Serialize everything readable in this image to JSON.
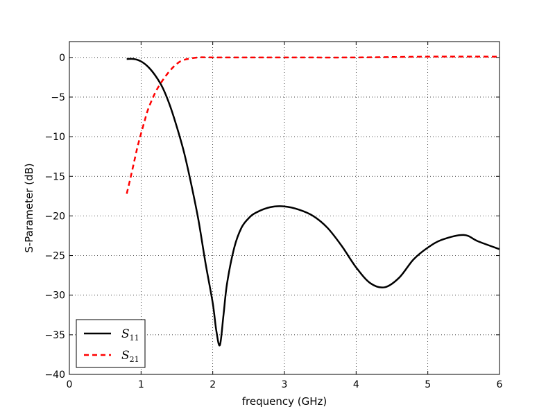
{
  "chart_data": {
    "type": "line",
    "title": "",
    "xlabel": "frequency (GHz)",
    "ylabel": "S-Parameter (dB)",
    "xlim": [
      0,
      6
    ],
    "ylim": [
      -40,
      2
    ],
    "xticks": [
      0,
      1,
      2,
      3,
      4,
      5,
      6
    ],
    "xtick_labels": [
      "0",
      "1",
      "2",
      "3",
      "4",
      "5",
      "6"
    ],
    "yticks": [
      0,
      -5,
      -10,
      -15,
      -20,
      -25,
      -30,
      -35,
      -40
    ],
    "ytick_labels": [
      "0",
      "−5",
      "−10",
      "−15",
      "−20",
      "−25",
      "−30",
      "−35",
      "−40"
    ],
    "grid": true,
    "legend_position": "lower-left",
    "series": [
      {
        "name": "S11",
        "legend_main": "S",
        "legend_sub": "11",
        "color": "#000000",
        "style": "solid",
        "x": [
          0.8,
          0.9,
          1.0,
          1.1,
          1.2,
          1.3,
          1.4,
          1.5,
          1.6,
          1.7,
          1.8,
          1.9,
          2.0,
          2.05,
          2.1,
          2.15,
          2.2,
          2.3,
          2.4,
          2.5,
          2.6,
          2.8,
          3.0,
          3.2,
          3.4,
          3.6,
          3.8,
          4.0,
          4.2,
          4.4,
          4.6,
          4.8,
          5.0,
          5.2,
          5.5,
          5.7,
          6.0
        ],
        "y": [
          -0.2,
          -0.2,
          -0.5,
          -1.2,
          -2.3,
          -3.8,
          -6.0,
          -8.8,
          -12.0,
          -16.0,
          -20.5,
          -26.0,
          -31.0,
          -34.5,
          -36.3,
          -32.5,
          -28.5,
          -24.0,
          -21.5,
          -20.3,
          -19.6,
          -18.9,
          -18.8,
          -19.2,
          -20.0,
          -21.5,
          -23.8,
          -26.5,
          -28.5,
          -29.0,
          -27.8,
          -25.5,
          -24.0,
          -23.0,
          -22.4,
          -23.2,
          -24.2
        ]
      },
      {
        "name": "S21",
        "legend_main": "S",
        "legend_sub": "21",
        "color": "#ff0000",
        "style": "dashed",
        "x": [
          0.8,
          0.85,
          0.9,
          0.95,
          1.0,
          1.05,
          1.1,
          1.2,
          1.3,
          1.4,
          1.5,
          1.6,
          1.8,
          2.0,
          2.5,
          3.0,
          4.0,
          5.0,
          6.0
        ],
        "y": [
          -17.2,
          -15.3,
          -13.3,
          -11.3,
          -9.6,
          -8.0,
          -6.5,
          -4.4,
          -2.9,
          -1.7,
          -0.8,
          -0.3,
          0.0,
          0.0,
          0.0,
          0.0,
          0.0,
          0.1,
          0.1
        ]
      }
    ]
  }
}
